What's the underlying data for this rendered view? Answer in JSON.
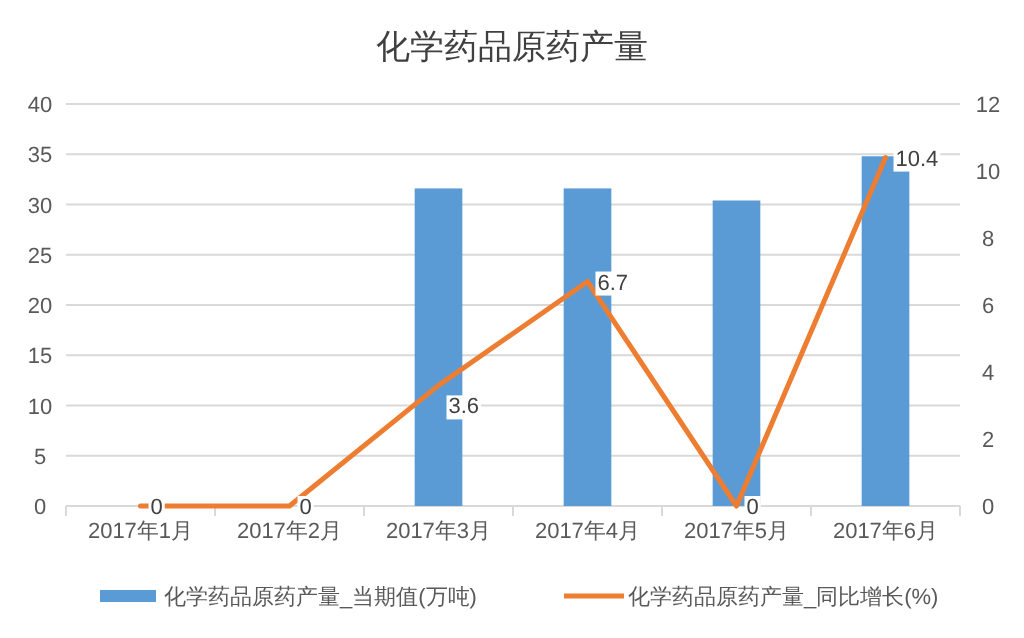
{
  "chart_data": {
    "type": "bar",
    "title": "化学药品原药产量",
    "categories": [
      "2017年1月",
      "2017年2月",
      "2017年3月",
      "2017年4月",
      "2017年5月",
      "2017年6月"
    ],
    "series": [
      {
        "name": "化学药品原药产量_当期值(万吨)",
        "color": "#5b9bd5",
        "values": [
          0,
          0,
          31.6,
          31.6,
          30.4,
          34.8
        ]
      },
      {
        "name": "化学药品原药产量_同比增长(%)",
        "type": "line",
        "axis": "y2",
        "color": "#ed7d31",
        "values": [
          0,
          0,
          3.6,
          6.7,
          0,
          10.4
        ],
        "value_labels": [
          "0",
          "0",
          "3.6",
          "6.7",
          "0",
          "10.4"
        ]
      }
    ],
    "ylim": [
      0,
      40
    ],
    "yticks": [
      0,
      5,
      10,
      15,
      20,
      25,
      30,
      35,
      40
    ],
    "y2lim": [
      0,
      12
    ],
    "y2ticks": [
      0,
      2,
      4,
      6,
      8,
      10,
      12
    ],
    "grid": "y",
    "legend": "bottom"
  }
}
